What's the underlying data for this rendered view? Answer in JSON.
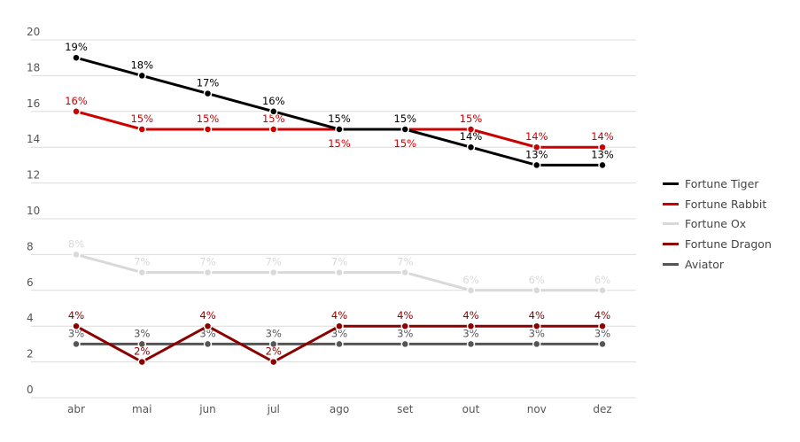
{
  "chart_data": {
    "type": "line",
    "categories": [
      "abr",
      "mai",
      "jun",
      "jul",
      "ago",
      "set",
      "out",
      "nov",
      "dez"
    ],
    "ylim": [
      0,
      20
    ],
    "yticks": [
      0,
      2,
      4,
      6,
      8,
      10,
      12,
      14,
      16,
      18,
      20
    ],
    "grid": true,
    "legend_position": "right",
    "series": [
      {
        "name": "Fortune Tiger",
        "color": "#000000",
        "values": [
          19,
          18,
          17,
          16,
          15,
          15,
          14,
          13,
          13
        ]
      },
      {
        "name": "Fortune Rabbit",
        "color": "#cc0000",
        "values": [
          16,
          15,
          15,
          15,
          15,
          15,
          15,
          14,
          14
        ]
      },
      {
        "name": "Fortune Ox",
        "color": "#d9d9d9",
        "values": [
          8,
          7,
          7,
          7,
          7,
          7,
          6,
          6,
          6
        ]
      },
      {
        "name": "Fortune Dragon",
        "color": "#8b0000",
        "values": [
          4,
          2,
          4,
          2,
          4,
          4,
          4,
          4,
          4
        ]
      },
      {
        "name": "Aviator",
        "color": "#555555",
        "values": [
          3,
          3,
          3,
          3,
          3,
          3,
          3,
          3,
          3
        ]
      }
    ]
  }
}
